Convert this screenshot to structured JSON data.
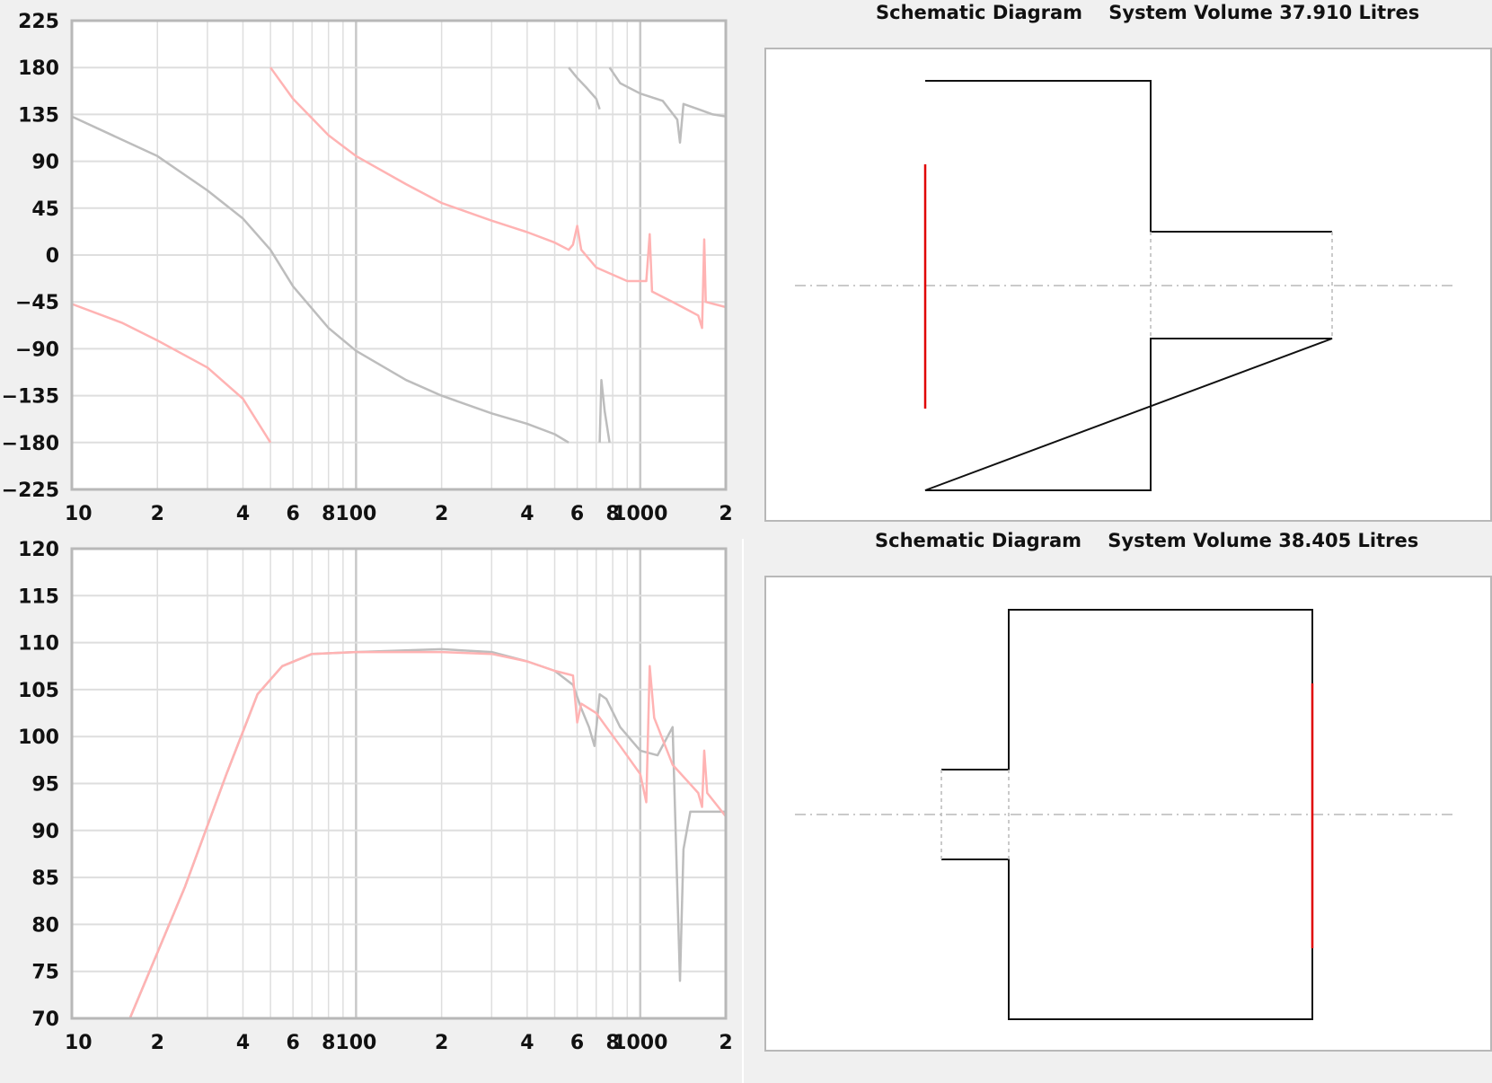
{
  "phase_chart": {
    "ylim": [
      -225,
      225
    ],
    "y_ticks": [
      "225",
      "180",
      "135",
      "90",
      "45",
      "0",
      "-45",
      "-90",
      "-135",
      "-180",
      "-225"
    ],
    "x_tick_labels": [
      "10",
      "2",
      "4",
      "6",
      "8",
      "100",
      "2",
      "4",
      "6",
      "8",
      "1000",
      "2"
    ],
    "x_tick_values": [
      10,
      20,
      40,
      60,
      80,
      100,
      200,
      400,
      600,
      800,
      1000,
      2000
    ],
    "xlim": [
      10,
      2000
    ],
    "x_scale": "log",
    "grid": true,
    "series_colors": [
      "#bdbdbd",
      "#ffb3b3"
    ]
  },
  "spl_chart": {
    "ylim": [
      70,
      120
    ],
    "y_ticks": [
      "120",
      "115",
      "110",
      "105",
      "100",
      "95",
      "90",
      "85",
      "80",
      "75",
      "70"
    ],
    "x_tick_labels": [
      "10",
      "2",
      "4",
      "6",
      "8",
      "100",
      "2",
      "4",
      "6",
      "8",
      "1000",
      "2"
    ],
    "x_tick_values": [
      10,
      20,
      40,
      60,
      80,
      100,
      200,
      400,
      600,
      800,
      1000,
      2000
    ],
    "xlim": [
      10,
      2000
    ],
    "x_scale": "log",
    "grid": true,
    "series_colors": [
      "#bdbdbd",
      "#ffb3b3"
    ]
  },
  "chart_data": [
    {
      "type": "line",
      "ylim": [
        -225,
        225
      ],
      "xlim": [
        10,
        2000
      ],
      "x_scale": "log",
      "series": [
        {
          "color": "#bdbdbd",
          "segments": [
            [
              [
                10,
                133
              ],
              [
                20,
                95
              ],
              [
                30,
                62
              ],
              [
                40,
                35
              ],
              [
                50,
                5
              ],
              [
                60,
                -30
              ],
              [
                80,
                -70
              ],
              [
                100,
                -92
              ],
              [
                150,
                -120
              ],
              [
                200,
                -135
              ],
              [
                300,
                -152
              ],
              [
                400,
                -162
              ],
              [
                500,
                -172
              ],
              [
                560,
                -180
              ]
            ],
            [
              [
                560,
                180
              ],
              [
                600,
                170
              ],
              [
                650,
                160
              ],
              [
                700,
                150
              ],
              [
                720,
                140
              ]
            ],
            [
              [
                720,
                -180
              ],
              [
                730,
                -120
              ],
              [
                750,
                -150
              ],
              [
                780,
                -180
              ]
            ],
            [
              [
                780,
                180
              ],
              [
                850,
                165
              ],
              [
                1000,
                155
              ],
              [
                1200,
                148
              ],
              [
                1350,
                130
              ],
              [
                1380,
                108
              ],
              [
                1420,
                145
              ],
              [
                1600,
                140
              ],
              [
                1800,
                135
              ],
              [
                2000,
                133
              ]
            ]
          ]
        },
        {
          "color": "#ffb3b3",
          "segments": [
            [
              [
                10,
                -47
              ],
              [
                15,
                -65
              ],
              [
                20,
                -82
              ],
              [
                30,
                -108
              ],
              [
                40,
                -138
              ],
              [
                50,
                -180
              ]
            ],
            [
              [
                50,
                180
              ],
              [
                60,
                150
              ],
              [
                80,
                115
              ],
              [
                100,
                95
              ],
              [
                150,
                68
              ],
              [
                200,
                50
              ],
              [
                300,
                33
              ],
              [
                400,
                22
              ],
              [
                500,
                12
              ],
              [
                560,
                5
              ],
              [
                580,
                10
              ],
              [
                600,
                28
              ],
              [
                620,
                5
              ],
              [
                700,
                -12
              ],
              [
                900,
                -25
              ],
              [
                1050,
                -25
              ],
              [
                1080,
                20
              ],
              [
                1100,
                -35
              ],
              [
                1300,
                -45
              ],
              [
                1600,
                -58
              ],
              [
                1650,
                -70
              ],
              [
                1680,
                15
              ],
              [
                1700,
                -45
              ],
              [
                2000,
                -50
              ]
            ]
          ]
        }
      ]
    },
    {
      "type": "line",
      "ylim": [
        70,
        120
      ],
      "xlim": [
        10,
        2000
      ],
      "x_scale": "log",
      "series": [
        {
          "color": "#bdbdbd",
          "segments": [
            [
              [
                16,
                70
              ],
              [
                25,
                84
              ],
              [
                35,
                96
              ],
              [
                45,
                104.5
              ],
              [
                55,
                107.5
              ],
              [
                70,
                108.8
              ],
              [
                100,
                109
              ],
              [
                200,
                109.3
              ],
              [
                300,
                109
              ],
              [
                400,
                108
              ],
              [
                500,
                107
              ],
              [
                580,
                105.5
              ],
              [
                620,
                103
              ],
              [
                660,
                101
              ],
              [
                690,
                99
              ],
              [
                720,
                104.5
              ],
              [
                760,
                104
              ],
              [
                850,
                101
              ],
              [
                1000,
                98.5
              ],
              [
                1150,
                98
              ],
              [
                1300,
                101
              ],
              [
                1380,
                74
              ],
              [
                1420,
                88
              ],
              [
                1500,
                92
              ],
              [
                1700,
                92
              ],
              [
                2000,
                92
              ]
            ]
          ]
        },
        {
          "color": "#ffb3b3",
          "segments": [
            [
              [
                16,
                70
              ],
              [
                25,
                84
              ],
              [
                35,
                96
              ],
              [
                45,
                104.5
              ],
              [
                55,
                107.5
              ],
              [
                70,
                108.8
              ],
              [
                100,
                109
              ],
              [
                200,
                109
              ],
              [
                300,
                108.8
              ],
              [
                400,
                108
              ],
              [
                500,
                107
              ],
              [
                580,
                106.5
              ],
              [
                600,
                101.5
              ],
              [
                620,
                103.5
              ],
              [
                700,
                102.5
              ],
              [
                850,
                99
              ],
              [
                1000,
                96
              ],
              [
                1050,
                93
              ],
              [
                1080,
                107.5
              ],
              [
                1120,
                102
              ],
              [
                1300,
                97
              ],
              [
                1600,
                94
              ],
              [
                1650,
                92.5
              ],
              [
                1680,
                98.5
              ],
              [
                1720,
                94
              ],
              [
                2000,
                91.5
              ]
            ]
          ]
        }
      ]
    }
  ],
  "schematic_top": {
    "title": "Schematic Diagram    System Volume 37.910 Litres",
    "driver_color": "#e00000"
  },
  "schematic_bottom": {
    "title": "Schematic Diagram    System Volume 38.405 Litres",
    "driver_color": "#e00000"
  }
}
